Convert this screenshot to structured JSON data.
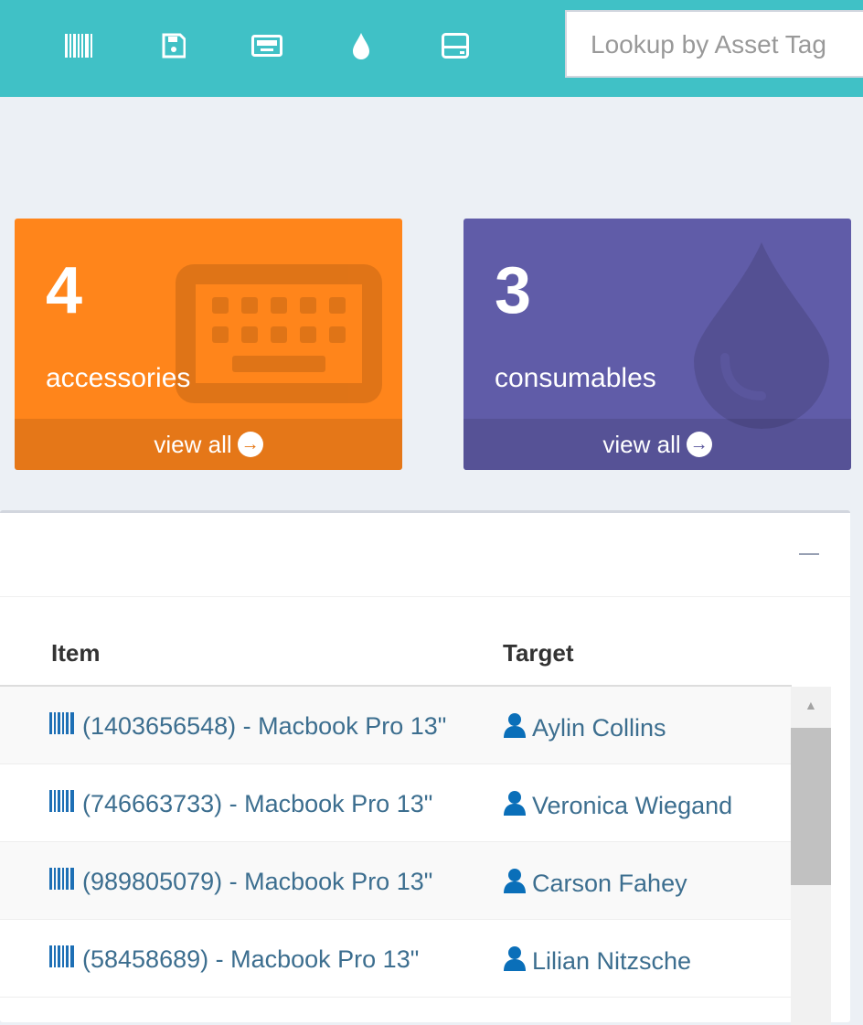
{
  "topbar": {
    "icons": [
      "barcode-icon",
      "save-icon",
      "keyboard-icon",
      "tint-icon",
      "hdd-icon"
    ],
    "search_placeholder": "Lookup by Asset Tag",
    "color": "#40c1c6"
  },
  "boxes": [
    {
      "count": "4",
      "label": "accessories",
      "link": "view all",
      "color": "#ff851b",
      "icon": "keyboard-icon"
    },
    {
      "count": "3",
      "label": "consumables",
      "link": "view all",
      "color": "#605ca8",
      "icon": "tint-icon"
    }
  ],
  "table": {
    "headers": {
      "item": "Item",
      "target": "Target"
    },
    "rows": [
      {
        "item": "(1403656548) - Macbook Pro 13\"",
        "target": "Aylin Collins"
      },
      {
        "item": "(746663733) - Macbook Pro 13\"",
        "target": "Veronica Wiegand"
      },
      {
        "item": "(989805079) - Macbook Pro 13\"",
        "target": "Carson Fahey"
      },
      {
        "item": "(58458689) - Macbook Pro 13\"",
        "target": "Lilian Nitzsche"
      }
    ]
  }
}
